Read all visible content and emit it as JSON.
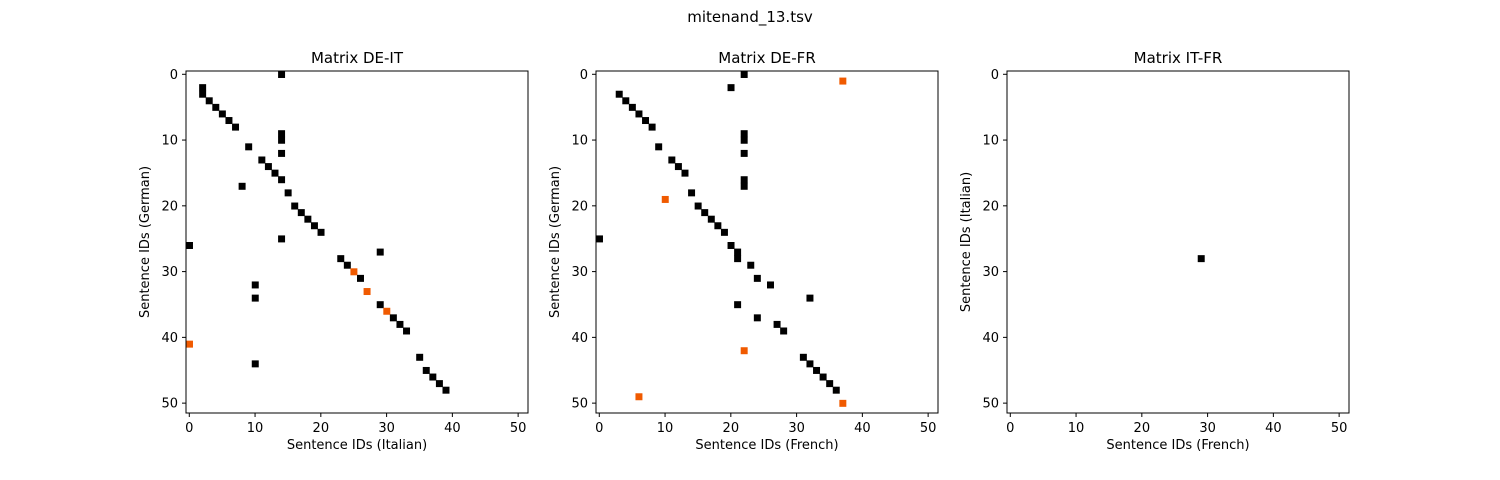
{
  "figure_title": "mitenand_13.tsv",
  "chart_data": [
    {
      "type": "heatmap",
      "title": "Matrix DE-IT",
      "xlabel": "Sentence IDs (Italian)",
      "ylabel": "Sentence IDs (German)",
      "xlim": [
        -0.5,
        51.5
      ],
      "ylim": [
        51.5,
        -0.5
      ],
      "xticks": [
        0,
        10,
        20,
        30,
        40,
        50
      ],
      "yticks": [
        0,
        10,
        20,
        30,
        40,
        50
      ],
      "colors": {
        "black": "#000000",
        "orange": "#f05a00"
      },
      "points": [
        {
          "x": 14,
          "y": 0,
          "color": "black"
        },
        {
          "x": 2,
          "y": 2,
          "color": "black"
        },
        {
          "x": 2,
          "y": 3,
          "color": "black"
        },
        {
          "x": 3,
          "y": 4,
          "color": "black"
        },
        {
          "x": 4,
          "y": 5,
          "color": "black"
        },
        {
          "x": 5,
          "y": 6,
          "color": "black"
        },
        {
          "x": 6,
          "y": 7,
          "color": "black"
        },
        {
          "x": 7,
          "y": 8,
          "color": "black"
        },
        {
          "x": 14,
          "y": 9,
          "color": "black"
        },
        {
          "x": 14,
          "y": 10,
          "color": "black"
        },
        {
          "x": 9,
          "y": 11,
          "color": "black"
        },
        {
          "x": 14,
          "y": 12,
          "color": "black"
        },
        {
          "x": 11,
          "y": 13,
          "color": "black"
        },
        {
          "x": 12,
          "y": 14,
          "color": "black"
        },
        {
          "x": 13,
          "y": 15,
          "color": "black"
        },
        {
          "x": 14,
          "y": 16,
          "color": "black"
        },
        {
          "x": 8,
          "y": 17,
          "color": "black"
        },
        {
          "x": 15,
          "y": 18,
          "color": "black"
        },
        {
          "x": 16,
          "y": 20,
          "color": "black"
        },
        {
          "x": 17,
          "y": 21,
          "color": "black"
        },
        {
          "x": 18,
          "y": 22,
          "color": "black"
        },
        {
          "x": 19,
          "y": 23,
          "color": "black"
        },
        {
          "x": 20,
          "y": 24,
          "color": "black"
        },
        {
          "x": 14,
          "y": 25,
          "color": "black"
        },
        {
          "x": 0,
          "y": 26,
          "color": "black"
        },
        {
          "x": 29,
          "y": 27,
          "color": "black"
        },
        {
          "x": 23,
          "y": 28,
          "color": "black"
        },
        {
          "x": 24,
          "y": 29,
          "color": "black"
        },
        {
          "x": 25,
          "y": 30,
          "color": "orange"
        },
        {
          "x": 26,
          "y": 31,
          "color": "black"
        },
        {
          "x": 10,
          "y": 32,
          "color": "black"
        },
        {
          "x": 27,
          "y": 33,
          "color": "orange"
        },
        {
          "x": 10,
          "y": 34,
          "color": "black"
        },
        {
          "x": 29,
          "y": 35,
          "color": "black"
        },
        {
          "x": 30,
          "y": 36,
          "color": "orange"
        },
        {
          "x": 31,
          "y": 37,
          "color": "black"
        },
        {
          "x": 32,
          "y": 38,
          "color": "black"
        },
        {
          "x": 33,
          "y": 39,
          "color": "black"
        },
        {
          "x": 0,
          "y": 41,
          "color": "orange"
        },
        {
          "x": 35,
          "y": 43,
          "color": "black"
        },
        {
          "x": 10,
          "y": 44,
          "color": "black"
        },
        {
          "x": 36,
          "y": 45,
          "color": "black"
        },
        {
          "x": 37,
          "y": 46,
          "color": "black"
        },
        {
          "x": 38,
          "y": 47,
          "color": "black"
        },
        {
          "x": 39,
          "y": 48,
          "color": "black"
        }
      ]
    },
    {
      "type": "heatmap",
      "title": "Matrix DE-FR",
      "xlabel": "Sentence IDs (French)",
      "ylabel": "Sentence IDs (German)",
      "xlim": [
        -0.5,
        51.5
      ],
      "ylim": [
        51.5,
        -0.5
      ],
      "xticks": [
        0,
        10,
        20,
        30,
        40,
        50
      ],
      "yticks": [
        0,
        10,
        20,
        30,
        40,
        50
      ],
      "colors": {
        "black": "#000000",
        "orange": "#f05a00"
      },
      "points": [
        {
          "x": 22,
          "y": 0,
          "color": "black"
        },
        {
          "x": 37,
          "y": 1,
          "color": "orange"
        },
        {
          "x": 20,
          "y": 2,
          "color": "black"
        },
        {
          "x": 3,
          "y": 3,
          "color": "black"
        },
        {
          "x": 4,
          "y": 4,
          "color": "black"
        },
        {
          "x": 5,
          "y": 5,
          "color": "black"
        },
        {
          "x": 6,
          "y": 6,
          "color": "black"
        },
        {
          "x": 7,
          "y": 7,
          "color": "black"
        },
        {
          "x": 8,
          "y": 8,
          "color": "black"
        },
        {
          "x": 22,
          "y": 9,
          "color": "black"
        },
        {
          "x": 22,
          "y": 10,
          "color": "black"
        },
        {
          "x": 9,
          "y": 11,
          "color": "black"
        },
        {
          "x": 22,
          "y": 12,
          "color": "black"
        },
        {
          "x": 11,
          "y": 13,
          "color": "black"
        },
        {
          "x": 12,
          "y": 14,
          "color": "black"
        },
        {
          "x": 13,
          "y": 15,
          "color": "black"
        },
        {
          "x": 22,
          "y": 16,
          "color": "black"
        },
        {
          "x": 22,
          "y": 17,
          "color": "black"
        },
        {
          "x": 14,
          "y": 18,
          "color": "black"
        },
        {
          "x": 10,
          "y": 19,
          "color": "orange"
        },
        {
          "x": 15,
          "y": 20,
          "color": "black"
        },
        {
          "x": 16,
          "y": 21,
          "color": "black"
        },
        {
          "x": 17,
          "y": 22,
          "color": "black"
        },
        {
          "x": 18,
          "y": 23,
          "color": "black"
        },
        {
          "x": 19,
          "y": 24,
          "color": "black"
        },
        {
          "x": 0,
          "y": 25,
          "color": "black"
        },
        {
          "x": 20,
          "y": 26,
          "color": "black"
        },
        {
          "x": 21,
          "y": 27,
          "color": "black"
        },
        {
          "x": 21,
          "y": 28,
          "color": "black"
        },
        {
          "x": 23,
          "y": 29,
          "color": "black"
        },
        {
          "x": 24,
          "y": 31,
          "color": "black"
        },
        {
          "x": 26,
          "y": 32,
          "color": "black"
        },
        {
          "x": 32,
          "y": 34,
          "color": "black"
        },
        {
          "x": 21,
          "y": 35,
          "color": "black"
        },
        {
          "x": 24,
          "y": 37,
          "color": "black"
        },
        {
          "x": 27,
          "y": 38,
          "color": "black"
        },
        {
          "x": 28,
          "y": 39,
          "color": "black"
        },
        {
          "x": 22,
          "y": 42,
          "color": "orange"
        },
        {
          "x": 31,
          "y": 43,
          "color": "black"
        },
        {
          "x": 32,
          "y": 44,
          "color": "black"
        },
        {
          "x": 33,
          "y": 45,
          "color": "black"
        },
        {
          "x": 34,
          "y": 46,
          "color": "black"
        },
        {
          "x": 35,
          "y": 47,
          "color": "black"
        },
        {
          "x": 36,
          "y": 48,
          "color": "black"
        },
        {
          "x": 6,
          "y": 49,
          "color": "orange"
        },
        {
          "x": 37,
          "y": 50,
          "color": "orange"
        }
      ]
    },
    {
      "type": "heatmap",
      "title": "Matrix IT-FR",
      "xlabel": "Sentence IDs (French)",
      "ylabel": "Sentence IDs (Italian)",
      "xlim": [
        -0.5,
        51.5
      ],
      "ylim": [
        51.5,
        -0.5
      ],
      "xticks": [
        0,
        10,
        20,
        30,
        40,
        50
      ],
      "yticks": [
        0,
        10,
        20,
        30,
        40,
        50
      ],
      "colors": {
        "black": "#000000",
        "orange": "#f05a00"
      },
      "points": [
        {
          "x": 29,
          "y": 28,
          "color": "black"
        }
      ]
    }
  ]
}
